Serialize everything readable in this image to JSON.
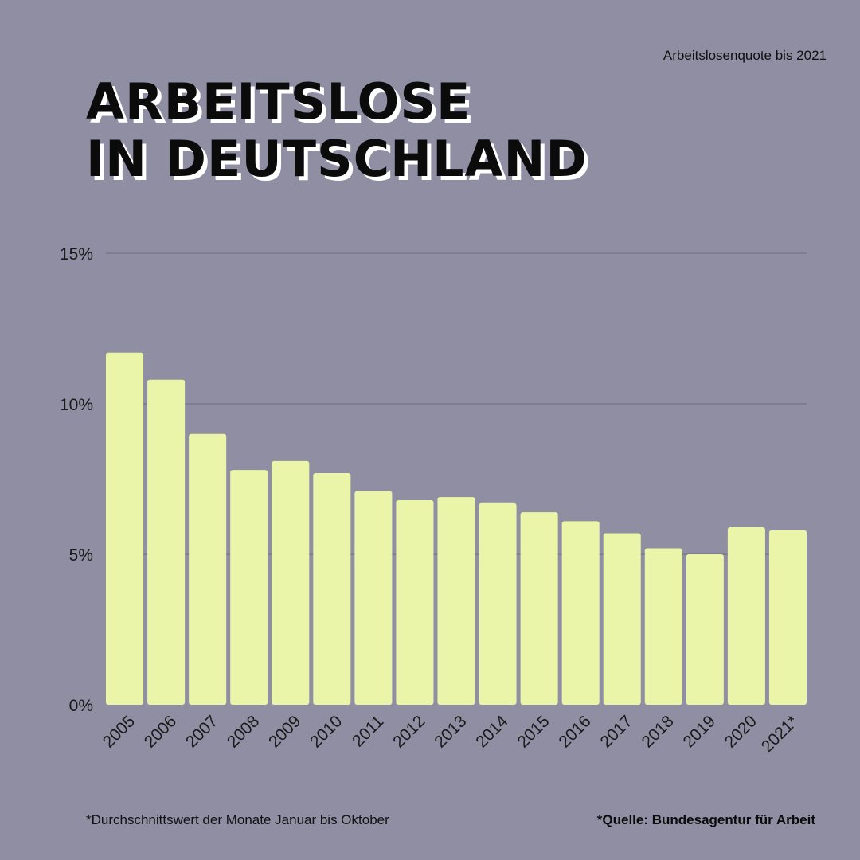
{
  "header": {
    "subtitle": "Arbeitslosenquote bis 2021",
    "title_line1": "ARBEITSLOSE",
    "title_line2": "IN DEUTSCHLAND"
  },
  "footer": {
    "footnote": "*Durchschnittswert der Monate Januar bis Oktober",
    "source": "*Quelle: Bundesagentur für Arbeit"
  },
  "colors": {
    "background": "#8f8ea3",
    "bar": "#eaf5aa",
    "gridline": "#6e6d82",
    "text": "#111111"
  },
  "chart_data": {
    "type": "bar",
    "categories": [
      "2005",
      "2006",
      "2007",
      "2008",
      "2009",
      "2010",
      "2011",
      "2012",
      "2013",
      "2014",
      "2015",
      "2016",
      "2017",
      "2018",
      "2019",
      "2020",
      "2021*"
    ],
    "values": [
      11.7,
      10.8,
      9.0,
      7.8,
      8.1,
      7.7,
      7.1,
      6.8,
      6.9,
      6.7,
      6.4,
      6.1,
      5.7,
      5.2,
      5.0,
      5.9,
      5.8
    ],
    "yticks": [
      {
        "value": 0,
        "label": "0%"
      },
      {
        "value": 5,
        "label": "5%"
      },
      {
        "value": 10,
        "label": "10%"
      },
      {
        "value": 15,
        "label": "15%"
      }
    ],
    "ylim": [
      0,
      15
    ],
    "grid": true,
    "xlabel": "",
    "ylabel": ""
  }
}
